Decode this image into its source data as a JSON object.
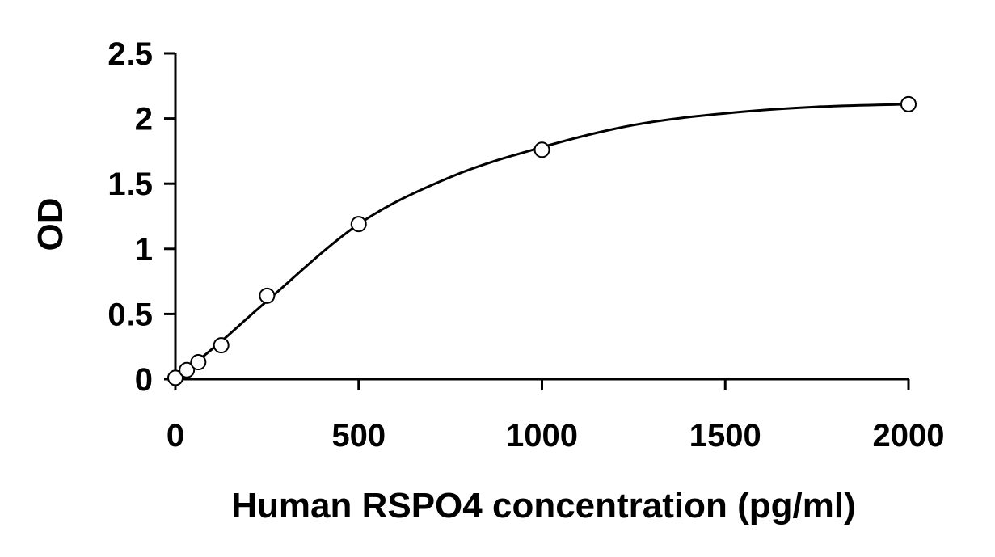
{
  "chart_data": {
    "type": "scatter",
    "xlabel": "Human RSPO4 concentration (pg/ml)",
    "ylabel": "OD",
    "xlim": [
      0,
      2000
    ],
    "ylim": [
      0,
      2.5
    ],
    "x_ticks": [
      0,
      500,
      1000,
      1500,
      2000
    ],
    "y_ticks": [
      0,
      0.5,
      1,
      1.5,
      2,
      2.5
    ],
    "x_tick_labels": [
      "0",
      "500",
      "1000",
      "1500",
      "2000"
    ],
    "y_tick_labels": [
      "0",
      "0.5",
      "1",
      "1.5",
      "2",
      "2.5"
    ],
    "grid": false,
    "legend": "none",
    "series": [
      {
        "marker": "open-circle",
        "points": [
          {
            "x": 0,
            "y": 0.01
          },
          {
            "x": 31.25,
            "y": 0.07
          },
          {
            "x": 62.5,
            "y": 0.13
          },
          {
            "x": 125,
            "y": 0.26
          },
          {
            "x": 250,
            "y": 0.64
          },
          {
            "x": 500,
            "y": 1.19
          },
          {
            "x": 1000,
            "y": 1.76
          },
          {
            "x": 2000,
            "y": 2.11
          }
        ],
        "fit_curve": {
          "type": "smooth-fit",
          "color": "#000000",
          "points": [
            {
              "x": 0,
              "y": 0.0
            },
            {
              "x": 125,
              "y": 0.29
            },
            {
              "x": 250,
              "y": 0.6
            },
            {
              "x": 500,
              "y": 1.19
            },
            {
              "x": 750,
              "y": 1.55
            },
            {
              "x": 1000,
              "y": 1.78
            },
            {
              "x": 1250,
              "y": 1.95
            },
            {
              "x": 1500,
              "y": 2.04
            },
            {
              "x": 1750,
              "y": 2.09
            },
            {
              "x": 2000,
              "y": 2.11
            }
          ]
        }
      }
    ]
  }
}
